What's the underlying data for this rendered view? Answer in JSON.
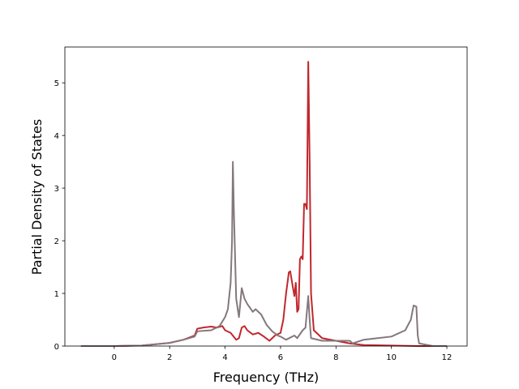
{
  "chart_data": {
    "type": "line",
    "x_label": "Frequency (THz)",
    "y_label": "Partial Density of States",
    "xlim": [
      -1.78,
      12.73
    ],
    "ylim": [
      0,
      5.68
    ],
    "xticks": [
      0,
      2,
      4,
      6,
      8,
      10,
      12
    ],
    "yticks": [
      0,
      1,
      2,
      3,
      4,
      5
    ],
    "series": [
      {
        "color": "#c1272d",
        "x": [
          -1.2,
          0,
          1,
          2,
          2.5,
          2.9,
          3.0,
          3.2,
          3.5,
          3.7,
          3.9,
          4.0,
          4.2,
          4.4,
          4.5,
          4.6,
          4.7,
          4.8,
          5.0,
          5.2,
          5.4,
          5.6,
          5.8,
          6.0,
          6.1,
          6.2,
          6.3,
          6.35,
          6.45,
          6.5,
          6.55,
          6.6,
          6.65,
          6.7,
          6.75,
          6.8,
          6.85,
          6.9,
          6.95,
          7.0,
          7.05,
          7.1,
          7.2,
          7.5,
          8,
          8.5,
          9,
          10,
          11,
          12
        ],
        "values": [
          0,
          0,
          0.01,
          0.06,
          0.12,
          0.2,
          0.33,
          0.35,
          0.37,
          0.35,
          0.38,
          0.3,
          0.25,
          0.12,
          0.15,
          0.35,
          0.38,
          0.3,
          0.22,
          0.25,
          0.18,
          0.1,
          0.2,
          0.25,
          0.5,
          1.0,
          1.4,
          1.42,
          1.1,
          0.95,
          1.2,
          0.65,
          0.7,
          1.65,
          1.7,
          1.65,
          2.7,
          2.7,
          2.6,
          5.4,
          3.5,
          1.0,
          0.3,
          0.15,
          0.1,
          0.05,
          0.02,
          0.01,
          0,
          0
        ]
      },
      {
        "color": "#85787c",
        "x": [
          -1.2,
          0,
          1,
          2,
          2.5,
          2.9,
          3.0,
          3.5,
          3.8,
          4.0,
          4.1,
          4.2,
          4.25,
          4.28,
          4.32,
          4.4,
          4.5,
          4.6,
          4.7,
          4.8,
          5.0,
          5.1,
          5.3,
          5.5,
          5.7,
          5.9,
          6.0,
          6.2,
          6.5,
          6.6,
          6.8,
          6.9,
          7.0,
          7.05,
          7.1,
          7.5,
          8,
          8.5,
          8.6,
          9,
          9.5,
          10,
          10.5,
          10.7,
          10.8,
          10.9,
          10.95,
          11,
          11.5,
          12
        ],
        "values": [
          0,
          0,
          0.01,
          0.06,
          0.12,
          0.18,
          0.28,
          0.3,
          0.38,
          0.55,
          0.7,
          1.2,
          2.0,
          3.5,
          2.5,
          0.9,
          0.55,
          1.1,
          0.9,
          0.8,
          0.65,
          0.7,
          0.6,
          0.4,
          0.28,
          0.2,
          0.18,
          0.12,
          0.2,
          0.15,
          0.3,
          0.35,
          0.95,
          0.5,
          0.15,
          0.1,
          0.1,
          0.1,
          0.05,
          0.12,
          0.15,
          0.18,
          0.3,
          0.5,
          0.77,
          0.75,
          0.2,
          0.05,
          0,
          0
        ]
      }
    ]
  }
}
